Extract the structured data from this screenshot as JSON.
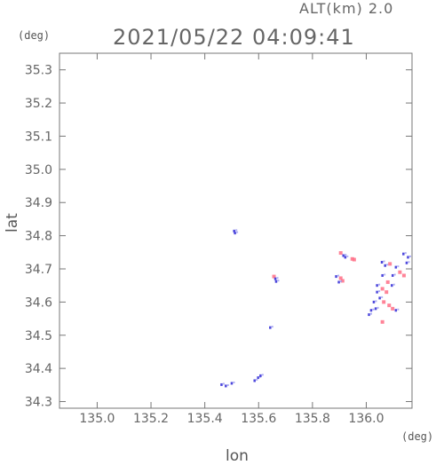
{
  "header": {
    "altitude": "ALT(km) 2.0",
    "timestamp": "2021/05/22 04:09:41"
  },
  "chart_data": {
    "type": "scatter",
    "title": "2021/05/22 04:09:41",
    "subtitle": "ALT(km) 2.0",
    "xlabel": "lon",
    "ylabel": "lat",
    "x_unit": "(deg)",
    "y_unit": "(deg)",
    "xlim": [
      134.86,
      136.17
    ],
    "ylim": [
      34.28,
      35.35
    ],
    "xticks": [
      "135.0",
      "135.2",
      "135.4",
      "135.6",
      "135.8",
      "136.0"
    ],
    "yticks": [
      "34.3",
      "34.4",
      "34.5",
      "34.6",
      "34.7",
      "34.8",
      "34.9",
      "35.0",
      "35.1",
      "35.2",
      "35.3"
    ],
    "grid": false,
    "colors": {
      "positive": "#ff6f86",
      "negative": "#3a34d8",
      "light_negative": "#9b9bf0"
    },
    "series": [
      {
        "values": [
          [
            135.509,
            34.814,
            "neg"
          ],
          [
            135.512,
            34.808,
            "neg"
          ],
          [
            135.657,
            34.677,
            "pos"
          ],
          [
            135.662,
            34.67,
            "neg"
          ],
          [
            135.665,
            34.662,
            "neg"
          ],
          [
            135.643,
            34.523,
            "neg"
          ],
          [
            135.462,
            34.351,
            "neg"
          ],
          [
            135.478,
            34.347,
            "neg"
          ],
          [
            135.5,
            34.355,
            "neg"
          ],
          [
            135.585,
            34.363,
            "neg"
          ],
          [
            135.598,
            34.372,
            "neg"
          ],
          [
            135.607,
            34.378,
            "neg"
          ],
          [
            135.905,
            34.748,
            "pos"
          ],
          [
            135.915,
            34.74,
            "neg"
          ],
          [
            135.922,
            34.735,
            "neg"
          ],
          [
            135.948,
            34.73,
            "pos"
          ],
          [
            135.955,
            34.728,
            "pos"
          ],
          [
            135.888,
            34.677,
            "neg"
          ],
          [
            135.905,
            34.672,
            "pos"
          ],
          [
            135.912,
            34.664,
            "pos"
          ],
          [
            135.898,
            34.66,
            "neg"
          ],
          [
            136.058,
            34.72,
            "neg"
          ],
          [
            136.07,
            34.71,
            "neg"
          ],
          [
            136.088,
            34.715,
            "pos"
          ],
          [
            136.11,
            34.705,
            "neg"
          ],
          [
            136.138,
            34.745,
            "neg"
          ],
          [
            136.155,
            34.735,
            "neg"
          ],
          [
            136.15,
            34.718,
            "neg"
          ],
          [
            136.125,
            34.69,
            "pos"
          ],
          [
            136.14,
            34.68,
            "pos"
          ],
          [
            136.098,
            34.68,
            "neg"
          ],
          [
            136.06,
            34.68,
            "neg"
          ],
          [
            136.08,
            34.66,
            "pos"
          ],
          [
            136.095,
            34.65,
            "neg"
          ],
          [
            136.04,
            34.65,
            "neg"
          ],
          [
            136.06,
            34.64,
            "pos"
          ],
          [
            136.075,
            34.63,
            "pos"
          ],
          [
            136.04,
            34.63,
            "neg"
          ],
          [
            136.05,
            34.612,
            "neg"
          ],
          [
            136.065,
            34.6,
            "pos"
          ],
          [
            136.085,
            34.59,
            "pos"
          ],
          [
            136.098,
            34.58,
            "pos"
          ],
          [
            136.11,
            34.575,
            "neg"
          ],
          [
            136.028,
            34.6,
            "neg"
          ],
          [
            136.035,
            34.58,
            "neg"
          ],
          [
            136.018,
            34.575,
            "neg"
          ],
          [
            136.01,
            34.562,
            "neg"
          ],
          [
            136.06,
            34.54,
            "pos"
          ]
        ]
      }
    ]
  }
}
